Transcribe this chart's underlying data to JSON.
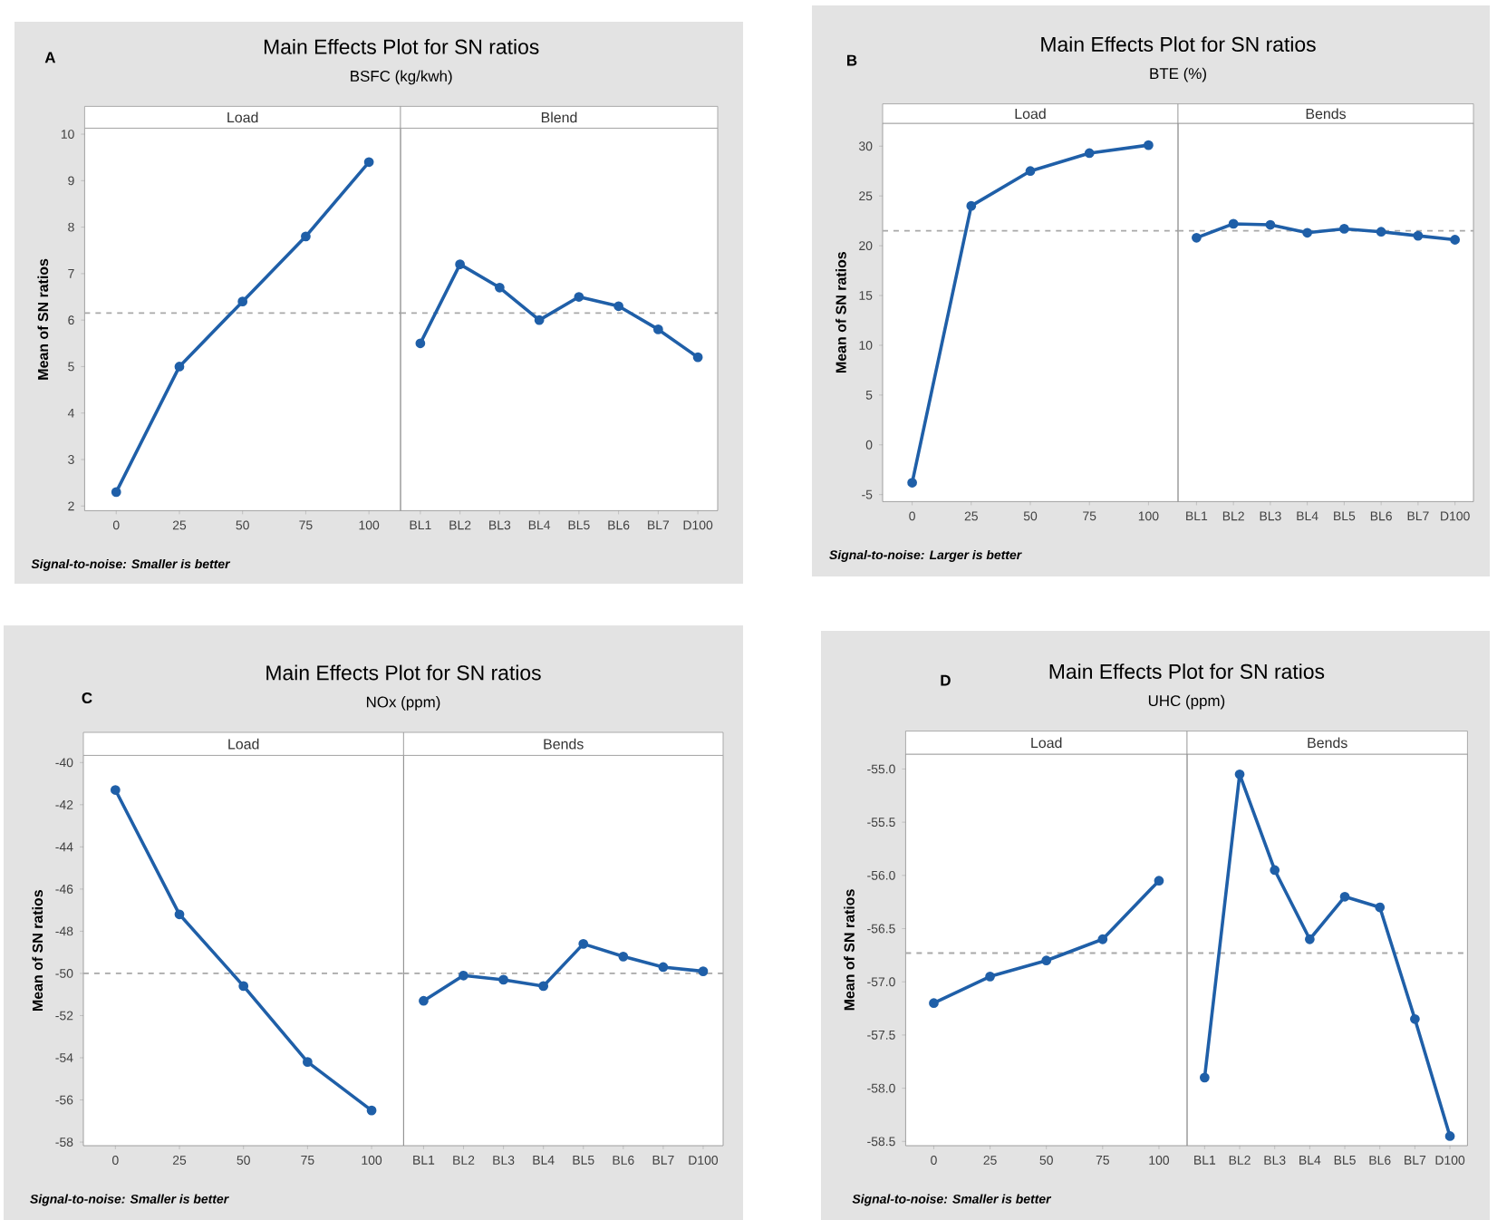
{
  "chart_data": [
    {
      "type": "line",
      "title": "Main Effects Plot for SN ratios",
      "subtitle": "BSFC (kg/kwh)",
      "ylabel": "Mean of SN ratios",
      "annotations": [
        "A",
        "Signal-to-noise: Smaller is better"
      ],
      "categories": [
        "0",
        "25",
        "50",
        "75",
        "100"
      ],
      "series": [
        {
          "name": "Load",
          "color": "#1f5fa8",
          "values": [
            2.3,
            5.0,
            6.4,
            7.8,
            9.4
          ]
        }
      ],
      "ylim": [
        1.9,
        10.13
      ],
      "yticks": [
        2,
        3,
        4,
        5,
        6,
        7,
        8,
        9,
        10
      ],
      "marker": "circle",
      "ref_lines": [
        {
          "axis": "y",
          "value": 6.15,
          "color": "#a8a8a8",
          "line_style": "dashed"
        }
      ]
    },
    {
      "type": "line",
      "categories": [
        "BL1",
        "BL2",
        "BL3",
        "BL4",
        "BL5",
        "BL6",
        "BL7",
        "D100"
      ],
      "series": [
        {
          "name": "Blend",
          "color": "#1f5fa8",
          "values": [
            5.5,
            7.2,
            6.7,
            6.0,
            6.5,
            6.3,
            5.8,
            5.2
          ]
        }
      ],
      "ylim": [
        1.9,
        10.13
      ],
      "tick_labels": "x",
      "marker": "circle",
      "ref_lines": [
        {
          "axis": "y",
          "value": 6.15,
          "color": "#a8a8a8",
          "line_style": "dashed"
        }
      ]
    },
    {
      "type": "line",
      "title": "Main Effects Plot for SN ratios",
      "subtitle": "BTE (%)",
      "ylabel": "Mean of SN ratios",
      "annotations": [
        "B",
        "Signal-to-noise: Larger is better"
      ],
      "categories": [
        "0",
        "25",
        "50",
        "75",
        "100"
      ],
      "series": [
        {
          "name": "Load",
          "color": "#1f5fa8",
          "values": [
            -3.8,
            24.0,
            27.5,
            29.3,
            30.1
          ]
        }
      ],
      "ylim": [
        -5.7,
        32.3
      ],
      "yticks": [
        -5,
        0,
        5,
        10,
        15,
        20,
        25,
        30
      ],
      "marker": "circle",
      "ref_lines": [
        {
          "axis": "y",
          "value": 21.5,
          "color": "#a8a8a8",
          "line_style": "dashed"
        }
      ]
    },
    {
      "type": "line",
      "categories": [
        "BL1",
        "BL2",
        "BL3",
        "BL4",
        "BL5",
        "BL6",
        "BL7",
        "D100"
      ],
      "series": [
        {
          "name": "Bends",
          "color": "#1f5fa8",
          "values": [
            20.8,
            22.2,
            22.1,
            21.3,
            21.7,
            21.4,
            21.0,
            20.6
          ]
        }
      ],
      "ylim": [
        -5.7,
        32.3
      ],
      "tick_labels": "x",
      "marker": "circle",
      "ref_lines": [
        {
          "axis": "y",
          "value": 21.5,
          "color": "#a8a8a8",
          "line_style": "dashed"
        }
      ]
    },
    {
      "type": "line",
      "title": "Main Effects Plot for SN ratios",
      "subtitle": "NOx (ppm)",
      "ylabel": "Mean of SN ratios",
      "annotations": [
        "C",
        "Signal-to-noise: Smaller is better"
      ],
      "categories": [
        "0",
        "25",
        "50",
        "75",
        "100"
      ],
      "series": [
        {
          "name": "Load",
          "color": "#1f5fa8",
          "values": [
            -41.3,
            -47.2,
            -50.6,
            -54.2,
            -56.5
          ]
        }
      ],
      "ylim": [
        -58.17,
        -39.66
      ],
      "yticks": [
        -58,
        -56,
        -54,
        -52,
        -50,
        -48,
        -46,
        -44,
        -42,
        -40
      ],
      "marker": "circle",
      "ref_lines": [
        {
          "axis": "y",
          "value": -50.0,
          "color": "#a8a8a8",
          "line_style": "dashed"
        }
      ]
    },
    {
      "type": "line",
      "categories": [
        "BL1",
        "BL2",
        "BL3",
        "BL4",
        "BL5",
        "BL6",
        "BL7",
        "D100"
      ],
      "series": [
        {
          "name": "Bends",
          "color": "#1f5fa8",
          "values": [
            -51.3,
            -50.1,
            -50.3,
            -50.6,
            -48.6,
            -49.2,
            -49.7,
            -49.9
          ]
        }
      ],
      "ylim": [
        -58.17,
        -39.66
      ],
      "tick_labels": "x",
      "marker": "circle",
      "ref_lines": [
        {
          "axis": "y",
          "value": -50.0,
          "color": "#a8a8a8",
          "line_style": "dashed"
        }
      ]
    },
    {
      "type": "line",
      "title": "Main Effects Plot for SN ratios",
      "subtitle": "UHC (ppm)",
      "ylabel": "Mean of SN ratios",
      "annotations": [
        "D",
        "Signal-to-noise: Smaller is better"
      ],
      "categories": [
        "0",
        "25",
        "50",
        "75",
        "100"
      ],
      "series": [
        {
          "name": "Load",
          "color": "#1f5fa8",
          "values": [
            -57.2,
            -56.95,
            -56.8,
            -56.6,
            -56.05
          ]
        }
      ],
      "ylim": [
        -58.54,
        -54.86
      ],
      "yticks": [
        {
          "value": -58.5,
          "label": "-58.5"
        },
        {
          "value": -58,
          "label": "-58.0"
        },
        {
          "value": -57.5,
          "label": "-57.5"
        },
        {
          "value": -57,
          "label": "-57.0"
        },
        {
          "value": -56.5,
          "label": "-56.5"
        },
        {
          "value": -56,
          "label": "-56.0"
        },
        {
          "value": -55.5,
          "label": "-55.5"
        },
        {
          "value": -55,
          "label": "-55.0"
        }
      ],
      "marker": "circle",
      "ref_lines": [
        {
          "axis": "y",
          "value": -56.73,
          "color": "#a8a8a8",
          "line_style": "dashed"
        }
      ]
    },
    {
      "type": "line",
      "categories": [
        "BL1",
        "BL2",
        "BL3",
        "BL4",
        "BL5",
        "BL6",
        "BL7",
        "D100"
      ],
      "series": [
        {
          "name": "Bends",
          "color": "#1f5fa8",
          "values": [
            -57.9,
            -55.05,
            -55.95,
            -56.6,
            -56.2,
            -56.3,
            -57.35,
            -58.45
          ]
        }
      ],
      "ylim": [
        -58.54,
        -54.86
      ],
      "tick_labels": "x",
      "marker": "circle",
      "ref_lines": [
        {
          "axis": "y",
          "value": -56.73,
          "color": "#a8a8a8",
          "line_style": "dashed"
        }
      ]
    }
  ]
}
